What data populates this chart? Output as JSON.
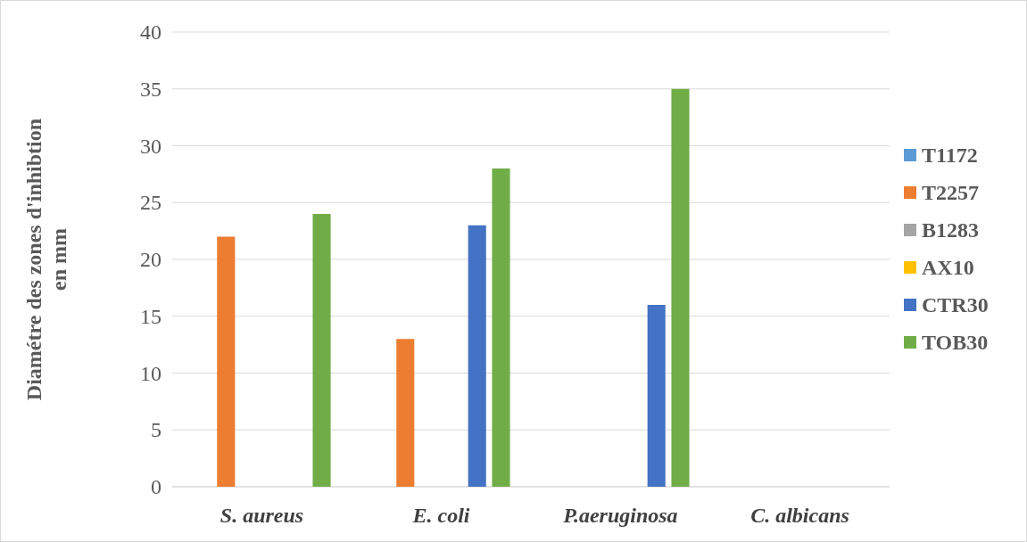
{
  "chart_data": {
    "type": "bar",
    "ylabel": "Diamétre des zones d'inhibtion en mm",
    "categories": [
      "S. aureus",
      "E. coli",
      "P.aeruginosa",
      "C. albicans"
    ],
    "series": [
      {
        "name": "T1172",
        "color": "#5b9bd5",
        "values": [
          0,
          0,
          0,
          0
        ]
      },
      {
        "name": "T2257",
        "color": "#ed7d31",
        "values": [
          22,
          13,
          0,
          0
        ]
      },
      {
        "name": "B1283",
        "color": "#a5a5a5",
        "values": [
          0,
          0,
          0,
          0
        ]
      },
      {
        "name": "AX10",
        "color": "#ffc000",
        "values": [
          0,
          0,
          0,
          0
        ]
      },
      {
        "name": "CTR30",
        "color": "#4472c4",
        "values": [
          0,
          23,
          16,
          0
        ]
      },
      {
        "name": "TOB30",
        "color": "#70ad47",
        "values": [
          24,
          28,
          35,
          0
        ]
      }
    ],
    "ylim": [
      0,
      40
    ],
    "yticks": [
      0,
      5,
      10,
      15,
      20,
      25,
      30,
      35,
      40
    ],
    "grid": "y",
    "legend": "right"
  }
}
